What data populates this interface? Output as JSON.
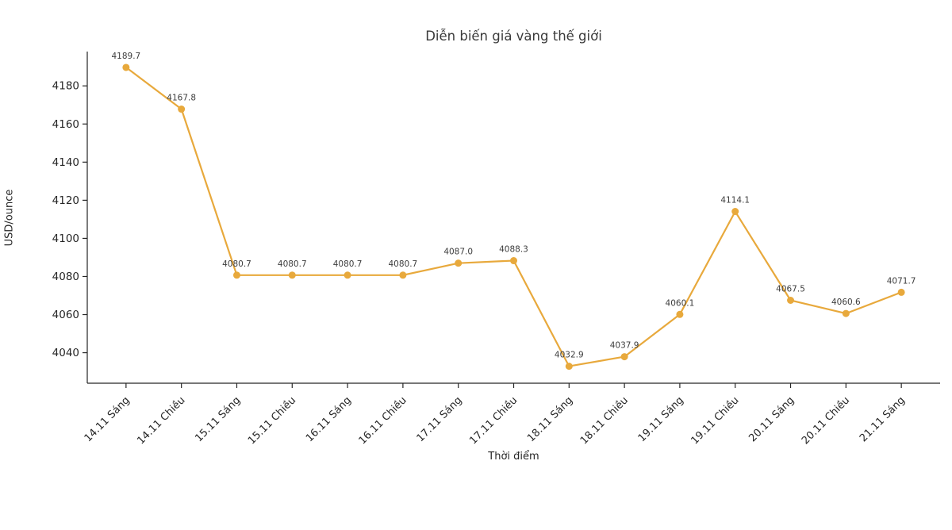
{
  "chart_data": {
    "type": "line",
    "title": "Diễn biến giá vàng thế giới",
    "xlabel": "Thời điểm",
    "ylabel": "USD/ounce",
    "categories": [
      "14.11 Sáng",
      "14.11 Chiều",
      "15.11 Sáng",
      "15.11 Chiều",
      "16.11 Sáng",
      "16.11 Chiều",
      "17.11 Sáng",
      "17.11 Chiều",
      "18.11 Sáng",
      "18.11 Chiều",
      "19.11 Sáng",
      "19.11 Chiều",
      "20.11 Sáng",
      "20.11 Chiều",
      "21.11 Sáng"
    ],
    "values": [
      4189.7,
      4167.8,
      4080.7,
      4080.7,
      4080.7,
      4080.7,
      4087.0,
      4088.3,
      4032.9,
      4037.9,
      4060.1,
      4114.1,
      4067.5,
      4060.6,
      4071.7
    ],
    "point_labels": [
      "4189.7",
      "4167.8",
      "4080.7",
      "4080.7",
      "4080.7",
      "4080.7",
      "4087.0",
      "4088.3",
      "4032.9",
      "4037.9",
      "4060.1",
      "4114.1",
      "4067.5",
      "4060.6",
      "4071.7"
    ],
    "yticks": [
      4040,
      4060,
      4080,
      4100,
      4120,
      4140,
      4160,
      4180
    ],
    "ylim": [
      4024,
      4198
    ],
    "grid": false,
    "legend_position": "none",
    "line_color": "#E8A93C",
    "marker_color": "#E8A93C",
    "axis_color": "#262626",
    "title_color": "#3a3a3a",
    "point_label_color": "#3d3d3d"
  }
}
